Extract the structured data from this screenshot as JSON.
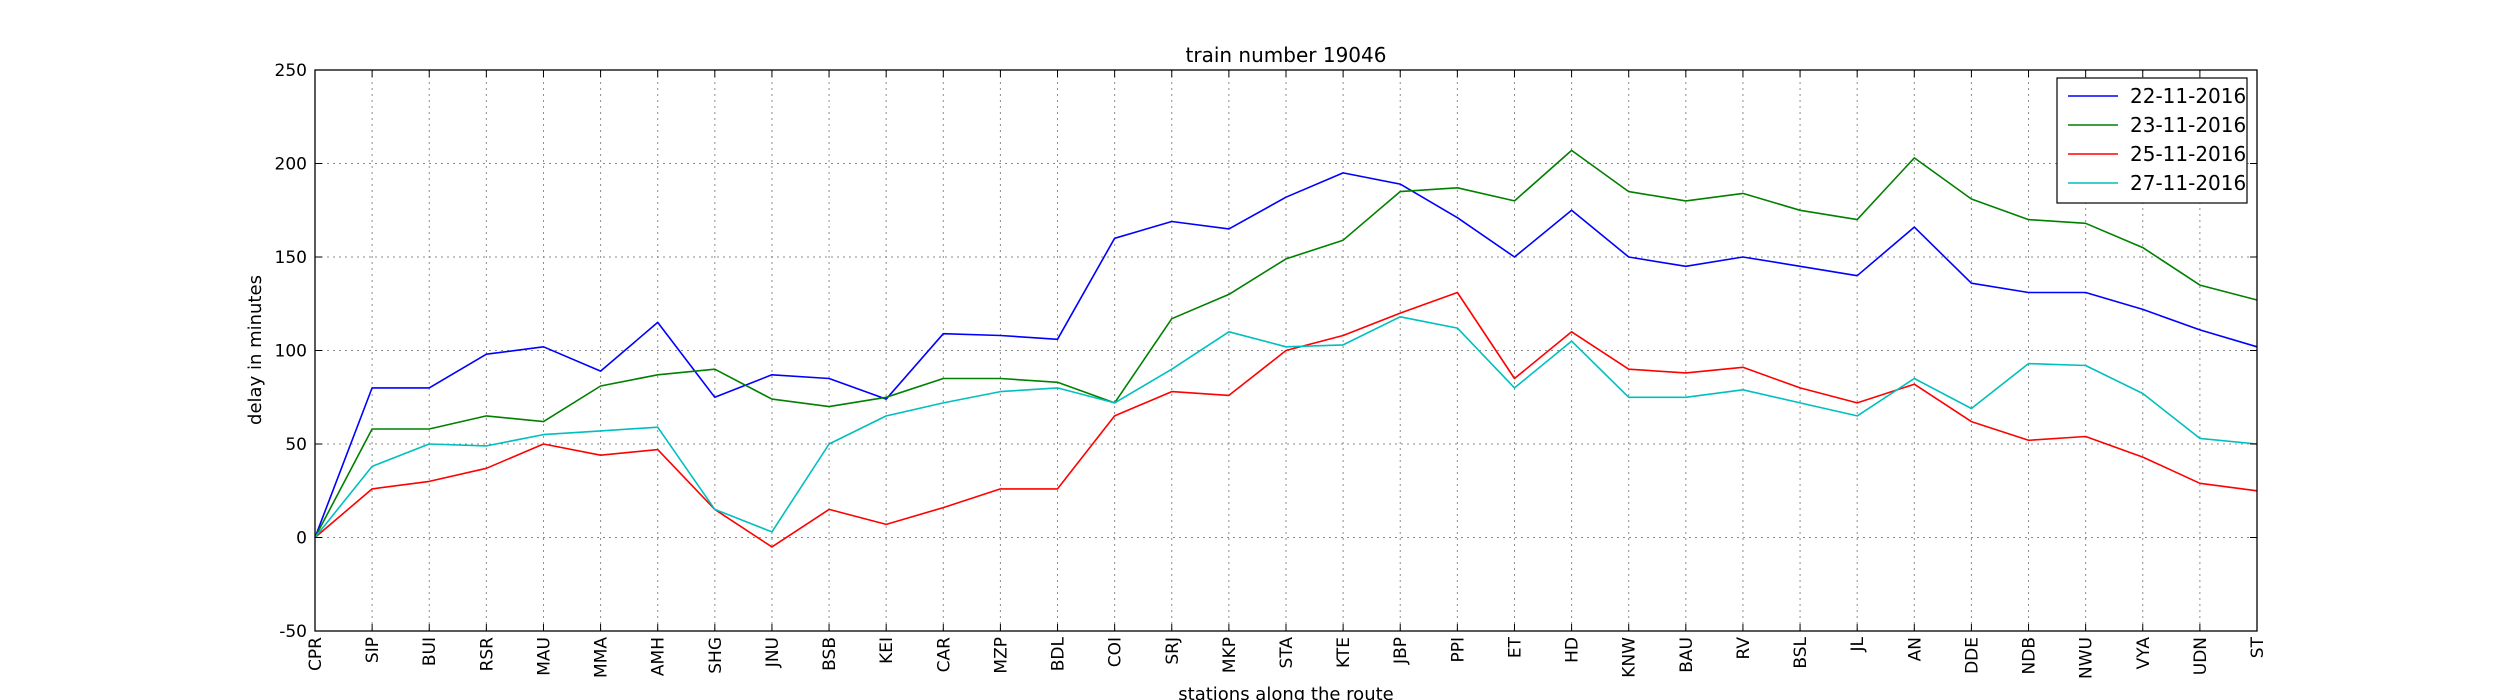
{
  "chart_data": {
    "type": "line",
    "title": "train number 19046",
    "xlabel": "stations along the route",
    "ylabel": "delay in minutes",
    "ylim": [
      -50,
      250
    ],
    "yticks": [
      -50,
      0,
      50,
      100,
      150,
      200,
      250
    ],
    "grid": true,
    "legend_position": "top-right",
    "categories": [
      "CPR",
      "SIP",
      "BUI",
      "RSR",
      "MAU",
      "MMA",
      "AMH",
      "SHG",
      "JNU",
      "BSB",
      "KEI",
      "CAR",
      "MZP",
      "BDL",
      "COI",
      "SRJ",
      "MKP",
      "STA",
      "KTE",
      "JBP",
      "PPI",
      "ET",
      "HD",
      "KNW",
      "BAU",
      "RV",
      "BSL",
      "JL",
      "AN",
      "DDE",
      "NDB",
      "NWU",
      "VYA",
      "UDN",
      "ST"
    ],
    "series": [
      {
        "name": "22-11-2016",
        "color": "#0000ff",
        "values": [
          0,
          80,
          80,
          98,
          102,
          89,
          115,
          75,
          87,
          85,
          74,
          109,
          108,
          106,
          160,
          169,
          165,
          182,
          195,
          189,
          171,
          150,
          175,
          150,
          145,
          150,
          145,
          140,
          166,
          136,
          131,
          131,
          122,
          111,
          102
        ]
      },
      {
        "name": "23-11-2016",
        "color": "#008000",
        "values": [
          0,
          58,
          58,
          65,
          62,
          81,
          87,
          90,
          74,
          70,
          75,
          85,
          85,
          83,
          72,
          117,
          130,
          149,
          159,
          185,
          187,
          180,
          207,
          185,
          180,
          184,
          175,
          170,
          203,
          181,
          170,
          168,
          155,
          135,
          127
        ]
      },
      {
        "name": "25-11-2016",
        "color": "#ff0000",
        "values": [
          0,
          26,
          30,
          37,
          50,
          44,
          47,
          15,
          -5,
          15,
          7,
          16,
          26,
          26,
          65,
          78,
          76,
          100,
          108,
          120,
          131,
          85,
          110,
          90,
          88,
          91,
          80,
          72,
          82,
          62,
          52,
          54,
          43,
          29,
          25
        ]
      },
      {
        "name": "27-11-2016",
        "color": "#00bfbf",
        "values": [
          0,
          38,
          50,
          49,
          55,
          57,
          59,
          15,
          3,
          50,
          65,
          72,
          78,
          80,
          72,
          90,
          110,
          102,
          103,
          118,
          112,
          80,
          105,
          75,
          75,
          79,
          72,
          65,
          85,
          69,
          93,
          92,
          77,
          53,
          50
        ]
      }
    ]
  }
}
